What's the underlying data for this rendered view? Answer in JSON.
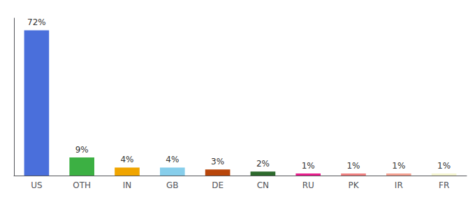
{
  "chart_data": {
    "type": "bar",
    "categories": [
      "US",
      "OTH",
      "IN",
      "GB",
      "DE",
      "CN",
      "RU",
      "PK",
      "IR",
      "FR"
    ],
    "values": [
      72,
      9,
      4,
      4,
      3,
      2,
      1,
      1,
      1,
      1
    ],
    "value_labels": [
      "72%",
      "9%",
      "4%",
      "4%",
      "3%",
      "2%",
      "1%",
      "1%",
      "1%",
      "1%"
    ],
    "colors": [
      "#4a6fdb",
      "#3cb043",
      "#f0a500",
      "#87ceeb",
      "#b8460b",
      "#2d6a2d",
      "#e91e8c",
      "#f08080",
      "#f4a090",
      "#f5f5d0"
    ],
    "ylim": [
      0,
      78
    ],
    "yticks": [],
    "grid": false,
    "tick_labels": "x",
    "data_labels": true
  }
}
